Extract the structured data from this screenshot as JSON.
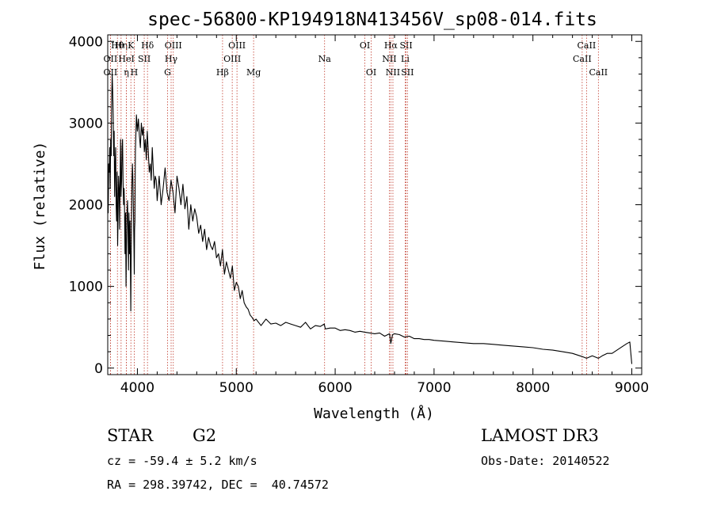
{
  "chart_data": {
    "type": "line",
    "title": "spec-56800-KP194918N413456V_sp08-014.fits",
    "xlabel": "Wavelength (Å)",
    "ylabel": "Flux (relative)",
    "xlim": [
      3700,
      9100
    ],
    "ylim": [
      -80,
      4080
    ],
    "xticks": [
      4000,
      5000,
      6000,
      7000,
      8000,
      9000
    ],
    "yticks": [
      0,
      1000,
      2000,
      3000,
      4000
    ],
    "series": [
      {
        "name": "flux",
        "x": [
          3700,
          3705,
          3710,
          3715,
          3720,
          3725,
          3730,
          3735,
          3740,
          3745,
          3750,
          3755,
          3760,
          3765,
          3770,
          3775,
          3780,
          3785,
          3790,
          3795,
          3800,
          3805,
          3810,
          3815,
          3820,
          3825,
          3830,
          3835,
          3840,
          3845,
          3850,
          3855,
          3860,
          3865,
          3870,
          3875,
          3880,
          3885,
          3890,
          3895,
          3900,
          3905,
          3910,
          3915,
          3920,
          3925,
          3930,
          3933,
          3936,
          3940,
          3945,
          3950,
          3955,
          3960,
          3965,
          3968,
          3972,
          3975,
          3980,
          3990,
          4000,
          4010,
          4020,
          4030,
          4040,
          4050,
          4060,
          4070,
          4080,
          4090,
          4100,
          4110,
          4120,
          4130,
          4140,
          4150,
          4160,
          4170,
          4180,
          4190,
          4200,
          4220,
          4240,
          4260,
          4280,
          4300,
          4320,
          4340,
          4360,
          4380,
          4400,
          4420,
          4440,
          4460,
          4480,
          4500,
          4520,
          4540,
          4560,
          4580,
          4600,
          4620,
          4640,
          4660,
          4680,
          4700,
          4720,
          4740,
          4760,
          4780,
          4800,
          4820,
          4840,
          4860,
          4880,
          4900,
          4920,
          4940,
          4960,
          4980,
          5000,
          5020,
          5040,
          5060,
          5080,
          5100,
          5120,
          5140,
          5160,
          5180,
          5200,
          5250,
          5300,
          5350,
          5400,
          5450,
          5500,
          5550,
          5600,
          5650,
          5700,
          5750,
          5800,
          5850,
          5890,
          5900,
          5950,
          6000,
          6050,
          6100,
          6150,
          6200,
          6250,
          6300,
          6350,
          6400,
          6450,
          6500,
          6550,
          6563,
          6580,
          6600,
          6650,
          6700,
          6750,
          6800,
          6850,
          6900,
          6950,
          7000,
          7100,
          7200,
          7300,
          7400,
          7500,
          7600,
          7700,
          7800,
          7900,
          8000,
          8100,
          8200,
          8300,
          8400,
          8500,
          8542,
          8600,
          8662,
          8700,
          8750,
          8800,
          8850,
          8900,
          8950,
          8980,
          9000
        ],
        "values": [
          2050,
          1900,
          2500,
          2400,
          2700,
          2200,
          2800,
          2600,
          3300,
          3600,
          3400,
          3100,
          2600,
          2900,
          2100,
          2500,
          2700,
          2000,
          1800,
          2400,
          1500,
          1900,
          2350,
          2200,
          1700,
          2300,
          2800,
          2100,
          2300,
          2700,
          2800,
          2300,
          2000,
          2200,
          1950,
          1400,
          1900,
          1000,
          1500,
          1900,
          2050,
          1700,
          1200,
          1900,
          1400,
          1800,
          1200,
          700,
          1300,
          1800,
          2300,
          2500,
          2300,
          1900,
          1500,
          1150,
          1700,
          1800,
          2650,
          3100,
          2900,
          3050,
          2850,
          2700,
          3000,
          2850,
          2950,
          2650,
          2800,
          2550,
          2900,
          2650,
          2400,
          2500,
          2300,
          2700,
          2450,
          2200,
          2350,
          2300,
          2050,
          2350,
          2000,
          2200,
          2450,
          2150,
          2050,
          2300,
          2150,
          1900,
          2350,
          2200,
          2000,
          2250,
          1950,
          2100,
          1700,
          2000,
          1800,
          1950,
          1850,
          1650,
          1750,
          1550,
          1700,
          1450,
          1600,
          1500,
          1450,
          1550,
          1350,
          1400,
          1250,
          1450,
          1150,
          1300,
          1200,
          1100,
          1250,
          950,
          1050,
          1000,
          850,
          950,
          800,
          750,
          720,
          650,
          620,
          580,
          600,
          520,
          600,
          540,
          550,
          520,
          560,
          540,
          520,
          500,
          560,
          480,
          520,
          510,
          540,
          480,
          490,
          490,
          460,
          470,
          460,
          440,
          450,
          440,
          430,
          420,
          430,
          390,
          420,
          300,
          410,
          420,
          410,
          380,
          390,
          360,
          360,
          350,
          350,
          340,
          330,
          320,
          310,
          300,
          300,
          290,
          280,
          270,
          260,
          250,
          230,
          220,
          200,
          180,
          140,
          120,
          150,
          120,
          150,
          180,
          180,
          220,
          260,
          300,
          320,
          50
        ],
        "color": "#000000"
      }
    ],
    "line_markers": [
      {
        "label": "OII",
        "x": 3727,
        "row": 3
      },
      {
        "label": "Hθ",
        "x": 3798,
        "row": 1
      },
      {
        "label": "OII",
        "x": 3727,
        "row": 2
      },
      {
        "label": "Hη",
        "x": 3835,
        "row": 1
      },
      {
        "label": "HeI",
        "x": 3889,
        "row": 2
      },
      {
        "label": "η",
        "x": 3889,
        "row": 3
      },
      {
        "label": "K",
        "x": 3934,
        "row": 1
      },
      {
        "label": "H",
        "x": 3968,
        "row": 3
      },
      {
        "label": "SII",
        "x": 4069,
        "row": 2
      },
      {
        "label": "Hδ",
        "x": 4102,
        "row": 1
      },
      {
        "label": "OIII",
        "x": 4363,
        "row": 1
      },
      {
        "label": "Hγ",
        "x": 4341,
        "row": 2
      },
      {
        "label": "G",
        "x": 4305,
        "row": 3
      },
      {
        "label": "OIII",
        "x": 5007,
        "row": 1
      },
      {
        "label": "OIII",
        "x": 4959,
        "row": 2
      },
      {
        "label": "Hβ",
        "x": 4861,
        "row": 3
      },
      {
        "label": "Mg",
        "x": 5175,
        "row": 3
      },
      {
        "label": "Na",
        "x": 5893,
        "row": 2
      },
      {
        "label": "OI",
        "x": 6300,
        "row": 1
      },
      {
        "label": "OI",
        "x": 6364,
        "row": 3
      },
      {
        "label": "Hα",
        "x": 6563,
        "row": 1
      },
      {
        "label": "NII",
        "x": 6548,
        "row": 2
      },
      {
        "label": "NII",
        "x": 6584,
        "row": 3
      },
      {
        "label": "SII",
        "x": 6717,
        "row": 1
      },
      {
        "label": "Li",
        "x": 6708,
        "row": 2
      },
      {
        "label": "SII",
        "x": 6731,
        "row": 3
      },
      {
        "label": "CaII",
        "x": 8542,
        "row": 1
      },
      {
        "label": "CaII",
        "x": 8498,
        "row": 2
      },
      {
        "label": "CaII",
        "x": 8662,
        "row": 3
      }
    ]
  },
  "info": {
    "object_type": "STAR",
    "subclass": "G2",
    "survey": "LAMOST DR3",
    "redshift_line": "cz = -59.4 ± 5.2 km/s",
    "obs_date_line": "Obs-Date: 20140522",
    "coords_line": "RA = 298.39742, DEC =  40.74572"
  },
  "colors": {
    "line_marker": "#c0392b",
    "spectrum": "#000000",
    "axis": "#000000"
  }
}
